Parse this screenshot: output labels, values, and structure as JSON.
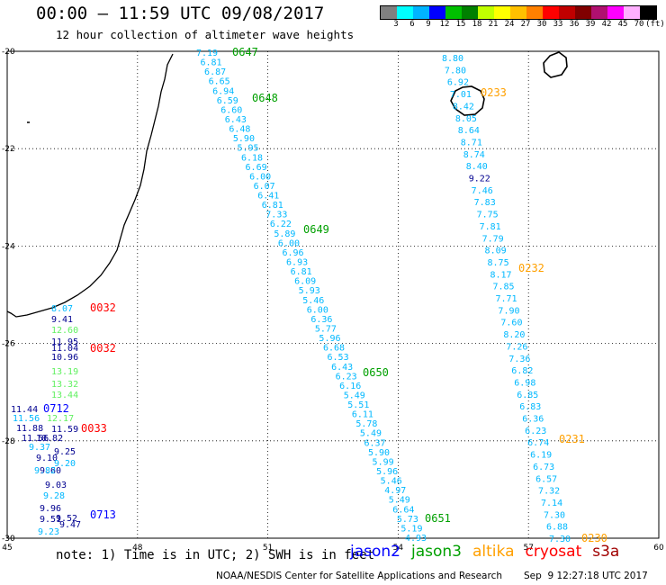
{
  "header": {
    "title": "00:00 – 11:59 UTC 09/08/2017",
    "subtitle": "12 hour collection of altimeter wave heights"
  },
  "colorbar": {
    "swatch_colors": [
      "#808080",
      "#00ffff",
      "#00b4ff",
      "#0000ff",
      "#00c000",
      "#008000",
      "#c0ff00",
      "#ffff00",
      "#ffc000",
      "#ff8000",
      "#ff0000",
      "#c00000",
      "#800000",
      "#b01070",
      "#ff00ff",
      "#ffb0ff",
      "#000000"
    ],
    "tick_labels": [
      "3",
      "6",
      "9",
      "12",
      "15",
      "18",
      "21",
      "24",
      "27",
      "30",
      "33",
      "36",
      "39",
      "42",
      "45",
      "70",
      "(ft)"
    ]
  },
  "map": {
    "lat_labels": [
      "-20",
      "-22",
      "-24",
      "-26",
      "-28",
      "-30"
    ],
    "lon_labels": [
      "45",
      "48",
      "51",
      "54",
      "57",
      "60"
    ],
    "colors": {
      "jason2": "#0000ff",
      "jason3": "#00a000",
      "altika": "#ffa000",
      "cryosat": "#ff0000",
      "s3a": "#a00000",
      "swh_cyan": "#00b8ff",
      "swh_lightgreen": "#60f060",
      "swh_navy": "#000090"
    },
    "track_a": {
      "values": [
        "7.19",
        "6.81",
        "6.87",
        "6.65",
        "6.94",
        "6.59",
        "6.60",
        "6.43",
        "6.48",
        "5.90",
        "5.95",
        "6.18",
        "6.69",
        "6.00",
        "6.07",
        "6.41",
        "6.81",
        "7.33",
        "6.22",
        "5.89",
        "6.00",
        "6.96",
        "6.93",
        "6.81",
        "6.09",
        "5.93",
        "5.46",
        "6.00",
        "6.36",
        "5.77",
        "5.96",
        "6.68",
        "6.53",
        "6.43",
        "6.23",
        "6.16",
        "5.49",
        "5.51",
        "6.11",
        "5.78",
        "5.49",
        "6.37",
        "5.90",
        "5.99",
        "5.96",
        "5.46",
        "4.97",
        "5.49",
        "6.64",
        "5.73",
        "5.19",
        "4.93"
      ],
      "times": [
        "0647",
        "0648",
        "0649",
        "0650",
        "0651"
      ]
    },
    "track_b": {
      "values": [
        "8.80",
        "7.80",
        "6.92",
        "7.01",
        "8.42",
        "8.05",
        "8.64",
        "8.71",
        "8.74",
        "8.40",
        "9.22",
        "7.46",
        "7.83",
        "7.75",
        "7.81",
        "7.79",
        "8.09",
        "8.75",
        "8.17",
        "7.85",
        "7.71",
        "7.90",
        "7.60",
        "8.20",
        "7.26",
        "7.36",
        "6.82",
        "6.98",
        "6.85",
        "6.83",
        "6.36",
        "6.23",
        "6.74",
        "6.19",
        "6.73",
        "6.57",
        "7.32",
        "7.14",
        "7.30",
        "6.88",
        "7.30"
      ],
      "times": [
        "0233",
        "0232",
        "0231",
        "0230"
      ]
    },
    "track_c": {
      "values": [
        "8.07",
        "9.41",
        "12.60",
        "11.95",
        "10.96",
        "13.19",
        "13.32",
        "13.44",
        "12.17",
        "11.04",
        "11.59"
      ],
      "times": [
        "0032",
        "0032",
        "0033"
      ]
    },
    "track_d": {
      "values": [
        "11.44",
        "11.56",
        "11.88",
        "11.56",
        "9.37",
        "9.25",
        "9.10",
        "9.20",
        "9.60",
        "9.03",
        "9.28",
        "9.96",
        "9.51",
        "9.23",
        "9.47",
        "9.52",
        "9.82",
        "10.82"
      ],
      "times": [
        "0712",
        "0713"
      ]
    }
  },
  "footer": {
    "note": "note: 1) Time is in UTC; 2) SWH is in feet",
    "satellites": [
      {
        "name": "jason2",
        "color": "#0000ff"
      },
      {
        "name": "jason3",
        "color": "#00a000"
      },
      {
        "name": "altika",
        "color": "#ffa000"
      },
      {
        "name": "cryosat",
        "color": "#ff0000"
      },
      {
        "name": "s3a",
        "color": "#a00000"
      }
    ],
    "credit": "NOAA/NESDIS Center for Satellite Applications and Research",
    "timestamp": "Sep  9 12:27:18 UTC 2017"
  }
}
